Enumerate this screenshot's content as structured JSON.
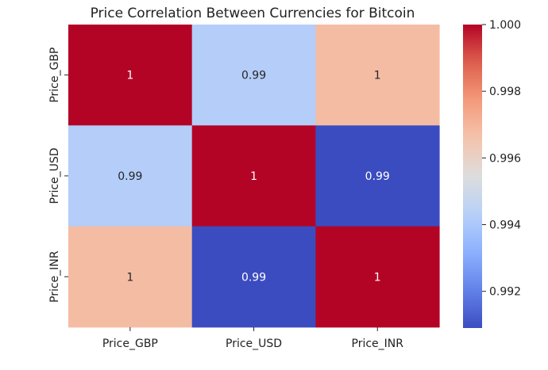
{
  "chart_data": {
    "type": "heatmap",
    "title": "Price Correlation Between Currencies for Bitcoin",
    "x_labels": [
      "Price_GBP",
      "Price_USD",
      "Price_INR"
    ],
    "y_labels": [
      "Price_GBP",
      "Price_USD",
      "Price_INR"
    ],
    "values": [
      [
        1.0,
        0.9942,
        0.9968
      ],
      [
        0.9942,
        1.0,
        0.9909
      ],
      [
        0.9968,
        0.9909,
        1.0
      ]
    ],
    "annotations": [
      [
        "1",
        "0.99",
        "1"
      ],
      [
        "0.99",
        "1",
        "0.99"
      ],
      [
        "1",
        "0.99",
        "1"
      ]
    ],
    "colormap": "coolwarm",
    "colorbar": {
      "range": [
        0.9909,
        1.0
      ],
      "ticks": [
        1.0,
        0.998,
        0.996,
        0.994,
        0.992
      ],
      "tick_labels": [
        "1.000",
        "0.998",
        "0.996",
        "0.994",
        "0.992"
      ]
    }
  }
}
